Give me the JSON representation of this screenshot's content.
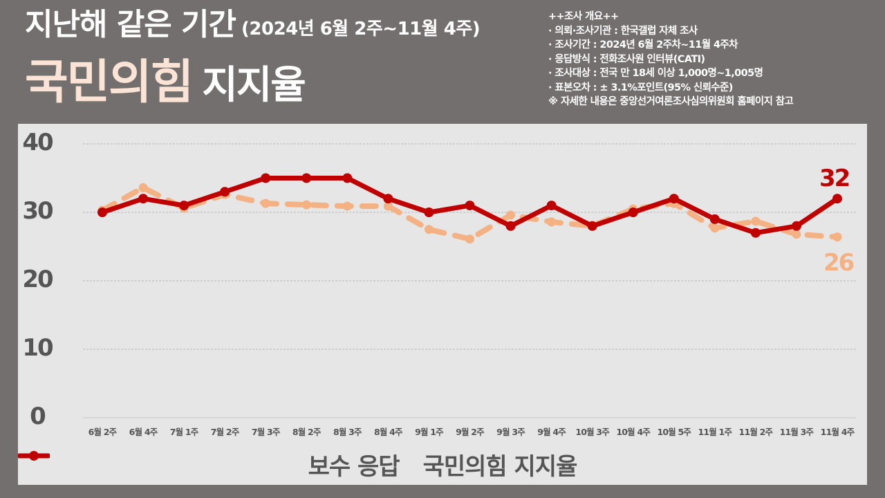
{
  "header": {
    "title_main": "지난해 같은 기간",
    "title_period": "(2024년 6월 2주~11월 4주)",
    "title_party": "국민의힘",
    "title_metric": "지지율"
  },
  "survey_info": {
    "heading": "++조사 개요++",
    "rows": [
      "· 의뢰·조사기관 : 한국갤럽 자체 조사",
      "· 조사기간 : 2024년 6월 2주차~11월 4주차",
      "· 응답방식 : 전화조사원 인터뷰(CATI)",
      "· 조사대상 : 전국 만 18세 이상 1,000명~1,005명",
      "· 표본오차 :  ± 3.1%포인트(95% 신뢰수준)"
    ],
    "note": "※ 자세한 내용은 중앙선거여론조사심의위원회 홈페이지 참고"
  },
  "colors": {
    "background": "#736f6e",
    "panel": "#e6e6e6",
    "party_series": "#c00000",
    "conservative_series": "#f4b183",
    "axis_text": "#555555",
    "title_accent": "#fbe4d6"
  },
  "end_labels": {
    "party": "32",
    "conservative": "26"
  },
  "legend": {
    "conservative": "보수 응답",
    "party": "국민의힘 지지율"
  },
  "chart_data": {
    "type": "line",
    "title": "지난해 같은 기간 (2024년 6월 2주~11월 4주) 국민의힘 지지율",
    "xlabel": "",
    "ylabel": "",
    "ylim": [
      0,
      40
    ],
    "yticks": [
      0,
      10,
      20,
      30,
      40
    ],
    "grid": true,
    "legend_position": "bottom",
    "categories": [
      "6월 2주",
      "6월 4주",
      "7월 1주",
      "7월 2주",
      "7월 3주",
      "8월 2주",
      "8월 3주",
      "8월 4주",
      "9월 1주",
      "9월 2주",
      "9월 3주",
      "9월 4주",
      "10월 3주",
      "10월 4주",
      "10월 5주",
      "11월 1주",
      "11월 2주",
      "11월 3주",
      "11월 4주"
    ],
    "series": [
      {
        "name": "보수 응답",
        "style": "dashed",
        "color": "#f4b183",
        "values": [
          30.3,
          33.6,
          30.6,
          32.6,
          31.3,
          31.1,
          30.9,
          30.9,
          27.5,
          26.1,
          29.6,
          28.6,
          28.0,
          30.5,
          31.3,
          27.7,
          28.7,
          26.8,
          26.4
        ]
      },
      {
        "name": "국민의힘 지지율",
        "style": "solid",
        "color": "#c00000",
        "values": [
          30,
          32,
          31,
          33,
          35,
          35,
          35,
          32,
          30,
          31,
          28,
          31,
          28,
          30,
          32,
          29,
          27,
          28,
          32
        ]
      }
    ],
    "annotations": [
      {
        "series": "국민의힘 지지율",
        "category": "11월 4주",
        "text": "32"
      },
      {
        "series": "보수 응답",
        "category": "11월 4주",
        "text": "26"
      }
    ]
  }
}
